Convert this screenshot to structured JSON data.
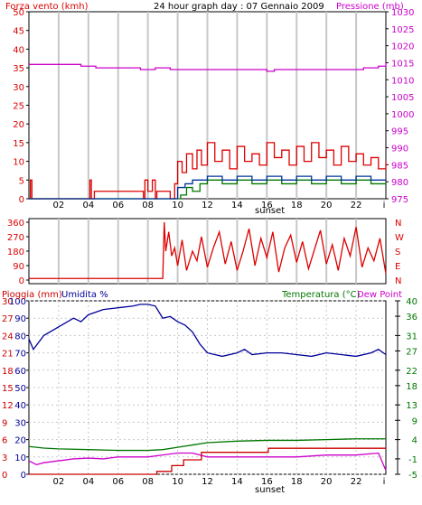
{
  "colors": {
    "wind": "#dd0000",
    "pressure": "#cc00cc",
    "gust_dir": "#003399",
    "temp": "#007700",
    "humidity": "#000099",
    "rain": "#cc0000",
    "dew": "#cc00cc",
    "grid": "#c8c8c8",
    "frame": "#000000"
  },
  "header": {
    "wind_label": "Forza vento (kmh)",
    "title": "24 hour graph day : 07 Gennaio 2009",
    "pressure_label": "Pressione (mb)",
    "rain_label": "Pioggia (mm)",
    "humidity_label": "Umidita %",
    "temp_label": "Temperatura (°C)",
    "dew_label": "Dew Point"
  },
  "x_ticks": [
    "02",
    "04",
    "06",
    "08",
    "10",
    "12",
    "14",
    "16",
    "18",
    "20",
    "22",
    "i"
  ],
  "sunset_label": "sunset",
  "chart_data": [
    {
      "type": "line",
      "name": "wind",
      "title": "24 hour graph day : 07 Gennaio 2009",
      "ylabel": "Forza vento (kmh)",
      "ylabel_right": "Pressione (mb)",
      "ylim": [
        0,
        50
      ],
      "ylim_right": [
        975,
        1030
      ],
      "y_ticks": [
        0,
        5,
        10,
        15,
        20,
        25,
        30,
        35,
        40,
        45,
        50
      ],
      "y_ticks_right": [
        975,
        980,
        985,
        990,
        995,
        1000,
        1005,
        1010,
        1015,
        1020,
        1025,
        1030
      ],
      "series": [
        {
          "name": "Forza vento (kmh)",
          "color": "wind",
          "x": [
            0,
            0.1,
            0.2,
            0.3,
            4.0,
            4.1,
            4.2,
            4.4,
            7.7,
            7.8,
            8.0,
            8.3,
            8.5,
            8.6,
            9.5,
            9.8,
            10.0,
            10.3,
            10.6,
            11.0,
            11.3,
            11.6,
            12.0,
            12.5,
            13.0,
            13.5,
            14.0,
            14.5,
            15.0,
            15.5,
            16.0,
            16.5,
            17.0,
            17.5,
            18.0,
            18.5,
            19.0,
            19.5,
            20.0,
            20.5,
            21.0,
            21.5,
            22.0,
            22.5,
            23.0,
            23.5,
            24.0
          ],
          "values": [
            0,
            5,
            0,
            0,
            0,
            5,
            0,
            2,
            0,
            5,
            2,
            5,
            0,
            2,
            0,
            4,
            10,
            7,
            12,
            8,
            13,
            9,
            15,
            10,
            13,
            8,
            14,
            10,
            12,
            9,
            15,
            11,
            13,
            9,
            14,
            10,
            15,
            11,
            13,
            9,
            14,
            10,
            12,
            9,
            11,
            8,
            10
          ]
        },
        {
          "name": "Pressione (mb)",
          "color": "pressure",
          "x": [
            0,
            1.5,
            2.5,
            3.5,
            4.5,
            5.5,
            6.5,
            7.5,
            8.5,
            9.5,
            10.5,
            11.5,
            12.5,
            13.5,
            14.5,
            15.5,
            16.0,
            16.5,
            17.5,
            18.5,
            19.5,
            20.5,
            21.5,
            22.5,
            23.5,
            24.0
          ],
          "values": [
            1014.5,
            1014.5,
            1014.5,
            1014,
            1013.5,
            1013.5,
            1013.5,
            1013,
            1013.5,
            1013,
            1013,
            1013,
            1013,
            1013,
            1013,
            1013,
            1012.5,
            1013,
            1013,
            1013,
            1013,
            1013,
            1013,
            1013.5,
            1014,
            1015
          ]
        },
        {
          "name": "gust",
          "color": "temp",
          "x": [
            0,
            9.5,
            9.8,
            10.2,
            10.6,
            11.0,
            11.5,
            12.0,
            13.0,
            14.0,
            15.0,
            16.0,
            17.0,
            18.0,
            19.0,
            20.0,
            21.0,
            22.0,
            23.0,
            24.0
          ],
          "values": [
            0,
            0,
            0,
            1,
            3,
            2,
            4,
            5,
            4,
            5,
            4,
            5,
            4,
            5,
            4,
            5,
            4,
            5,
            4,
            4
          ]
        },
        {
          "name": "average",
          "color": "gust_dir",
          "x": [
            0,
            9.5,
            10.0,
            10.5,
            11.0,
            11.5,
            12.0,
            13.0,
            14.0,
            15.0,
            16.0,
            17.0,
            18.0,
            19.0,
            20.0,
            21.0,
            22.0,
            23.0,
            24.0
          ],
          "values": [
            0,
            0,
            3,
            4,
            5,
            5,
            6,
            5,
            6,
            5,
            6,
            5,
            6,
            5,
            6,
            5,
            6,
            5,
            5
          ]
        }
      ]
    },
    {
      "type": "scatter",
      "name": "direction",
      "ylim": [
        0,
        360
      ],
      "y_ticks": [
        0,
        90,
        180,
        270,
        360
      ],
      "y_ticks_right": [
        "N",
        "E",
        "S",
        "W",
        "N"
      ],
      "series": [
        {
          "name": "direzione",
          "color": "wind",
          "x": [
            0,
            9.0,
            9.1,
            9.2,
            9.4,
            9.6,
            9.8,
            10.0,
            10.3,
            10.6,
            11.0,
            11.3,
            11.6,
            12.0,
            12.4,
            12.8,
            13.2,
            13.6,
            14.0,
            14.4,
            14.8,
            15.2,
            15.6,
            16.0,
            16.4,
            16.8,
            17.2,
            17.6,
            18.0,
            18.4,
            18.8,
            19.2,
            19.6,
            20.0,
            20.4,
            20.8,
            21.2,
            21.6,
            22.0,
            22.4,
            22.8,
            23.2,
            23.6,
            24.0
          ],
          "values": [
            10,
            10,
            360,
            180,
            300,
            150,
            200,
            90,
            250,
            60,
            180,
            120,
            270,
            80,
            200,
            300,
            100,
            240,
            60,
            180,
            320,
            90,
            260,
            140,
            300,
            50,
            200,
            280,
            110,
            240,
            70,
            190,
            310,
            100,
            220,
            60,
            260,
            150,
            330,
            80,
            200,
            120,
            260,
            40
          ]
        }
      ]
    },
    {
      "type": "line",
      "name": "rain-humidity-temp",
      "ylabel": "Pioggia (mm)",
      "ylabel_right": "Temperatura (°C)",
      "ylim_rain": [
        0,
        30
      ],
      "ylim_hum": [
        0,
        100
      ],
      "ylim_temp": [
        -5,
        40
      ],
      "y_ticks_rain": [
        0,
        3,
        6,
        9,
        12,
        15,
        18,
        21,
        24,
        27,
        30
      ],
      "y_ticks_hum": [
        0,
        10,
        20,
        30,
        40,
        50,
        60,
        70,
        80,
        90,
        100
      ],
      "y_ticks_temp": [
        -5,
        -1,
        4,
        9,
        13,
        18,
        22,
        27,
        31,
        36,
        40
      ],
      "series": [
        {
          "name": "Umidita %",
          "color": "humidity",
          "x": [
            0,
            0.3,
            1,
            2,
            3,
            3.5,
            4,
            5,
            6,
            7,
            7.5,
            8,
            8.5,
            9,
            9.5,
            10,
            10.5,
            11,
            11.5,
            12,
            13,
            14,
            14.5,
            15,
            16,
            17,
            18,
            19,
            20,
            21,
            22,
            23,
            23.5,
            24
          ],
          "values": [
            78,
            72,
            80,
            85,
            90,
            88,
            92,
            95,
            96,
            97,
            98,
            98,
            97,
            90,
            91,
            88,
            86,
            82,
            75,
            70,
            68,
            70,
            72,
            69,
            70,
            70,
            69,
            68,
            70,
            69,
            68,
            70,
            72,
            69
          ]
        },
        {
          "name": "Temperatura (°C)",
          "color": "temp",
          "x": [
            0,
            1,
            2,
            4,
            6,
            8,
            9,
            10,
            11,
            12,
            14,
            16,
            18,
            20,
            22,
            24
          ],
          "values": [
            2.2,
            1.8,
            1.6,
            1.4,
            1.2,
            1.2,
            1.4,
            2.0,
            2.6,
            3.2,
            3.6,
            3.8,
            3.8,
            4.0,
            4.2,
            4.2
          ]
        },
        {
          "name": "Dew Point",
          "color": "dew",
          "x": [
            0,
            0.5,
            1,
            2,
            3,
            4,
            5,
            6,
            7,
            8,
            9,
            10,
            11,
            12,
            14,
            16,
            18,
            20,
            22,
            23.5,
            24
          ],
          "values": [
            -1.5,
            -2.5,
            -2,
            -1.5,
            -1,
            -0.8,
            -1,
            -0.5,
            -0.5,
            -0.5,
            0,
            0.5,
            0.5,
            -0.5,
            -0.5,
            -0.5,
            -0.5,
            0,
            0,
            0.5,
            -4
          ]
        },
        {
          "name": "Pioggia (mm)",
          "color": "rain",
          "x": [
            0,
            8.5,
            8.6,
            9.5,
            9.6,
            10.3,
            10.4,
            11.5,
            11.6,
            16.0,
            16.1,
            24.0
          ],
          "values": [
            0,
            0,
            0.5,
            0.5,
            1.5,
            1.5,
            2.5,
            2.5,
            3.8,
            3.8,
            4.5,
            4.5
          ]
        }
      ]
    }
  ]
}
